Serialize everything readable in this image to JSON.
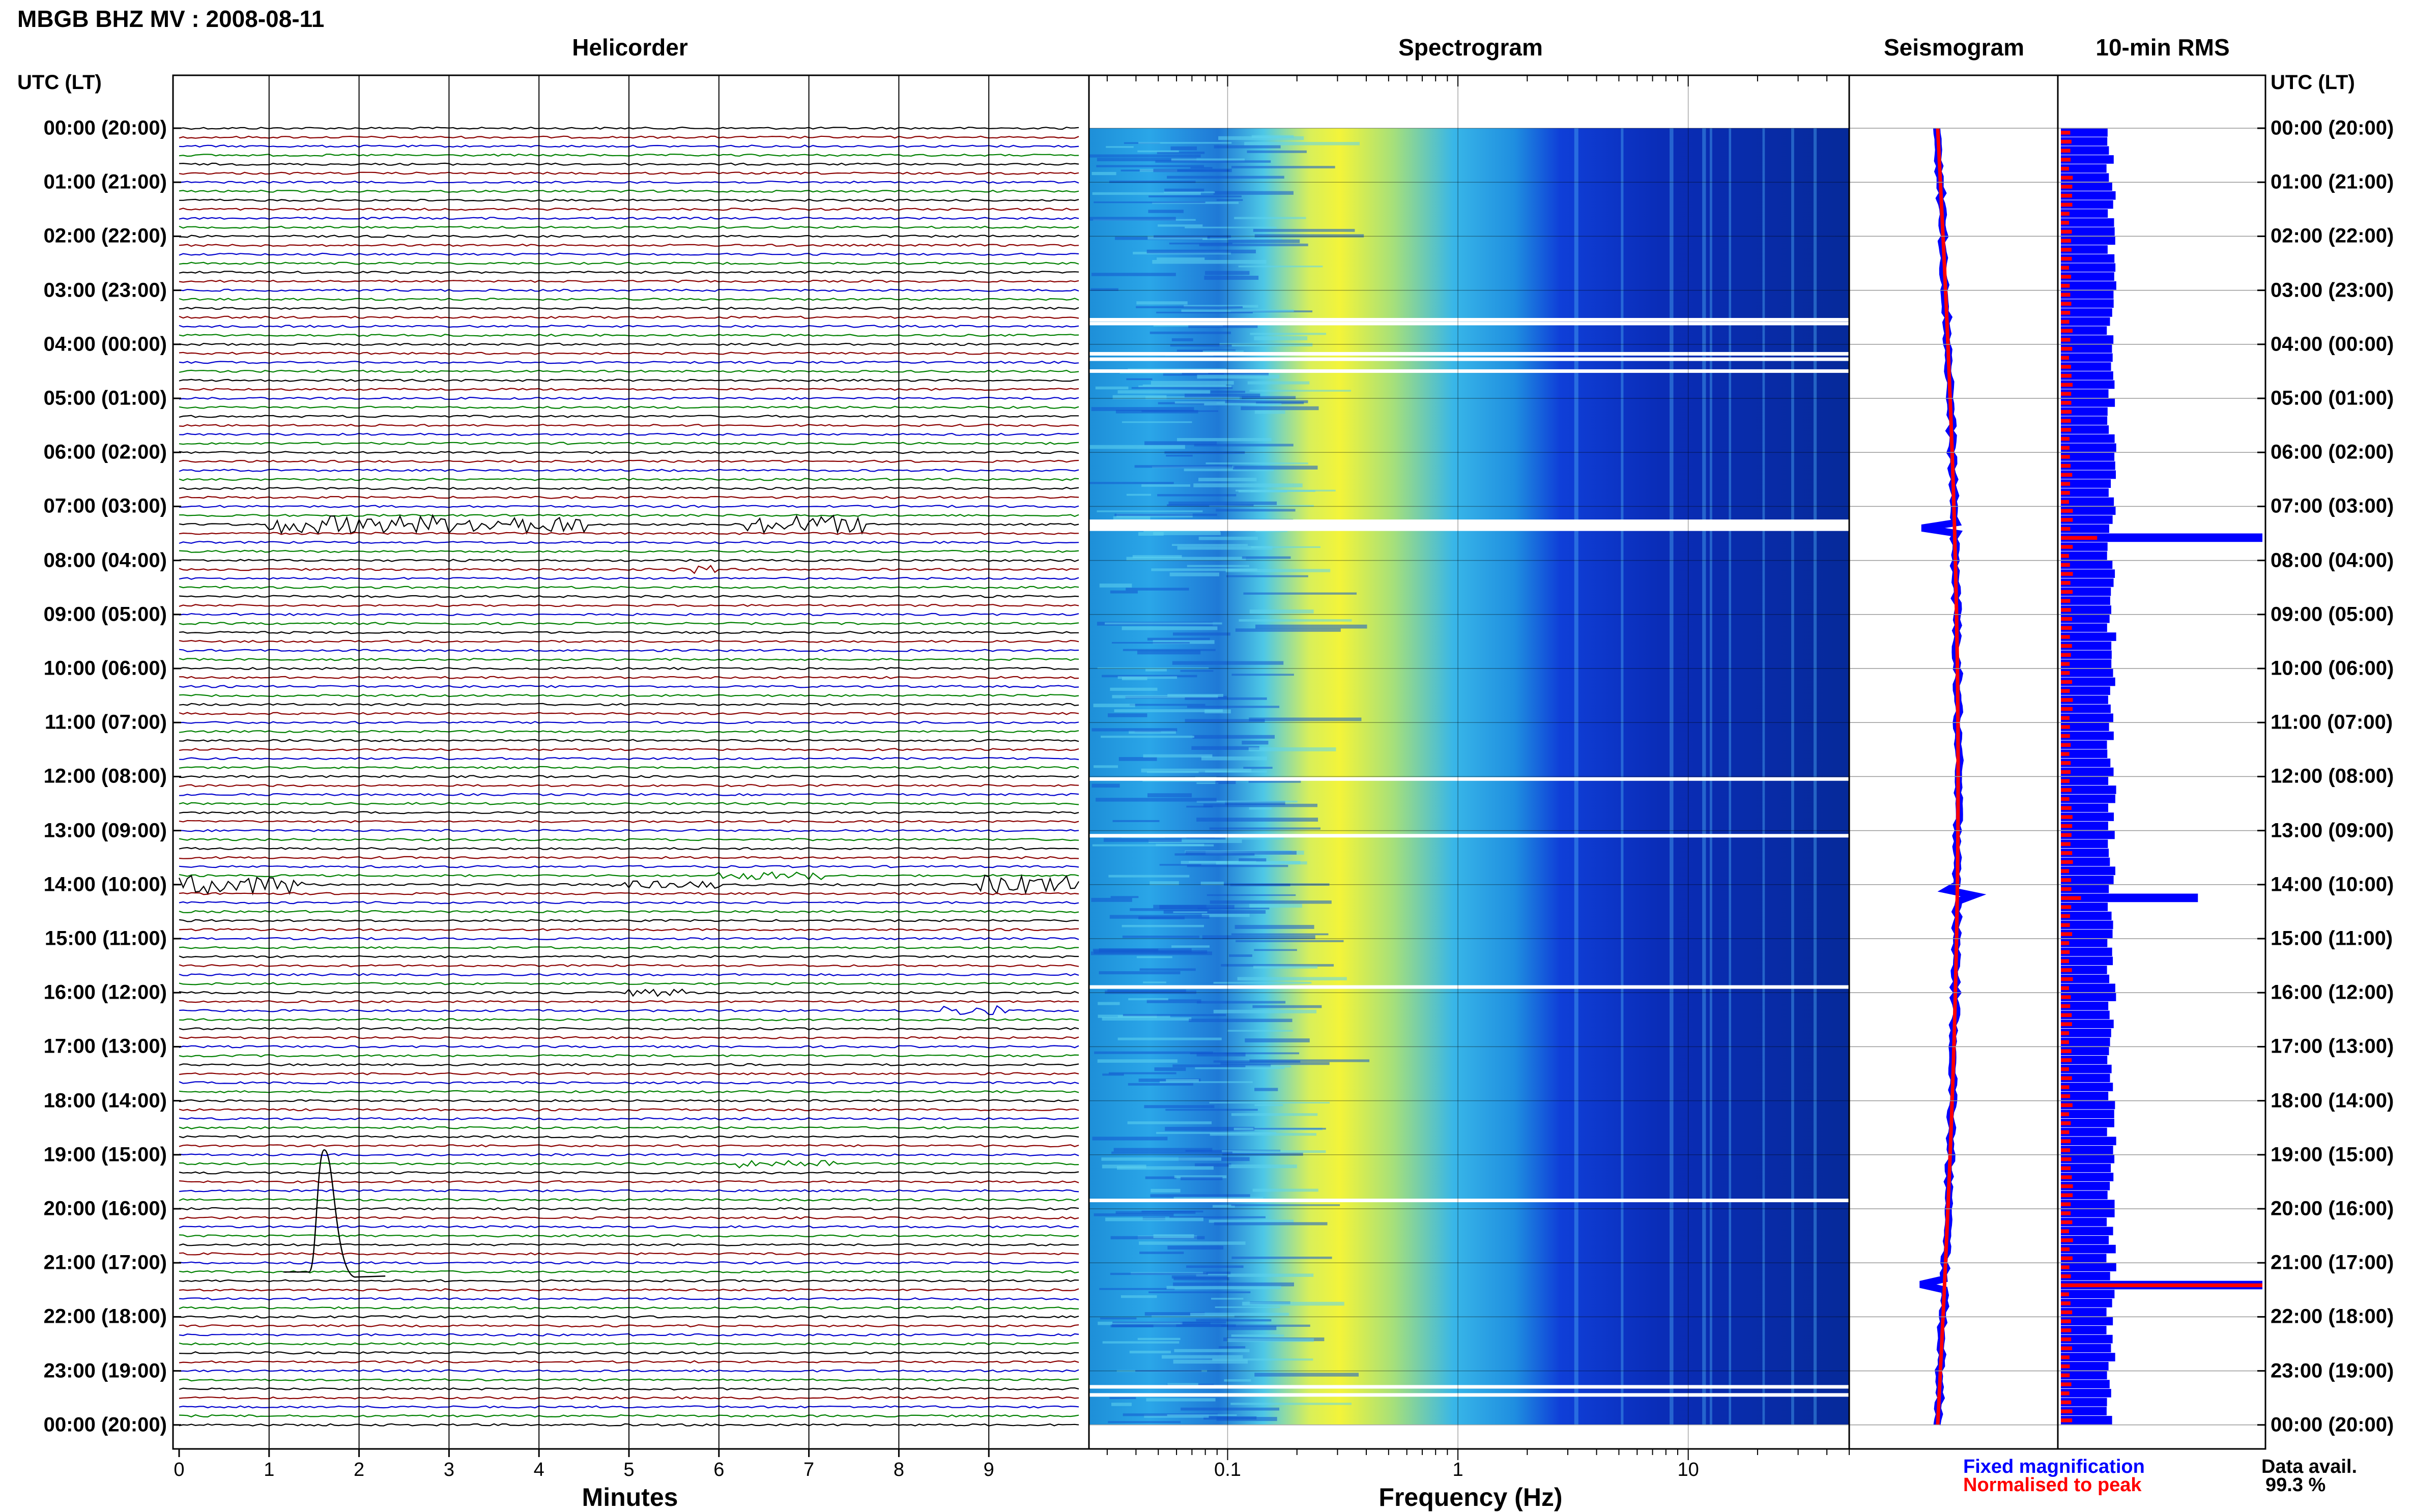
{
  "main_title": "MBGB BHZ MV : 2008-08-11",
  "panels": {
    "helicorder": "Helicorder",
    "spectrogram": "Spectrogram",
    "seismogram": "Seismogram",
    "rms": "10-min RMS"
  },
  "axis_titles": {
    "left_time": "UTC (LT)",
    "right_time": "UTC (LT)",
    "helicorder_x": "Minutes",
    "spectrogram_x": "Frequency (Hz)"
  },
  "legend": {
    "fixed": "Fixed magnification",
    "normalised": "Normalised to peak"
  },
  "data_avail": {
    "label": "Data avail.",
    "value": "99.3 %"
  },
  "colors": {
    "trace_cycle": [
      "#000000",
      "#8b0000",
      "#0000cd",
      "#008000"
    ],
    "fixed_magnification": "#0000ff",
    "normalised": "#ff0000",
    "spectrogram_low": "#00008b",
    "spectrogram_high": "#ffff00"
  },
  "chart_data": [
    {
      "type": "line",
      "panel": "helicorder",
      "xlabel": "Minutes",
      "x_ticks": [
        "0",
        "1",
        "2",
        "3",
        "4",
        "5",
        "6",
        "7",
        "8",
        "9"
      ],
      "xlim": [
        0,
        10
      ],
      "rows_per_hour": 6,
      "hours": 24,
      "events": [
        {
          "hour_decimal": 7.33,
          "minute_start": 1.0,
          "minute_end": 4.5,
          "amplitude": 3.0
        },
        {
          "hour_decimal": 7.33,
          "minute_start": 6.3,
          "minute_end": 7.6,
          "amplitude": 3.0
        },
        {
          "hour_decimal": 8.1,
          "minute_start": 5.5,
          "minute_end": 6.1,
          "amplitude": 1.4
        },
        {
          "hour_decimal": 13.83,
          "minute_start": 6.0,
          "minute_end": 7.2,
          "amplitude": 1.3
        },
        {
          "hour_decimal": 14.0,
          "minute_start": 0.0,
          "minute_end": 1.4,
          "amplitude": 3.0
        },
        {
          "hour_decimal": 14.0,
          "minute_start": 8.9,
          "minute_end": 10.0,
          "amplitude": 3.0
        },
        {
          "hour_decimal": 14.0,
          "minute_start": 4.8,
          "minute_end": 6.0,
          "amplitude": 1.2
        },
        {
          "hour_decimal": 16.0,
          "minute_start": 5.0,
          "minute_end": 5.6,
          "amplitude": 1.2
        },
        {
          "hour_decimal": 16.33,
          "minute_start": 8.5,
          "minute_end": 9.2,
          "amplitude": 1.6
        },
        {
          "hour_decimal": 19.17,
          "minute_start": 6.2,
          "minute_end": 7.3,
          "amplitude": 1.4
        }
      ]
    },
    {
      "type": "heatmap",
      "panel": "spectrogram",
      "xlabel": "Frequency (Hz)",
      "x_scale": "log",
      "xlim": [
        0.025,
        50
      ],
      "x_ticks": [
        "0.1",
        "1",
        "10"
      ],
      "tick_values": [
        0.1,
        1,
        10
      ],
      "energy_peak_hz": 0.25,
      "data_gaps_hour": [
        3.55,
        3.62,
        4.18,
        4.28,
        4.5,
        7.28,
        7.36,
        12.05,
        13.1,
        15.9,
        19.85,
        23.3,
        23.45
      ]
    },
    {
      "type": "line",
      "panel": "seismogram",
      "events_hour": [
        7.45,
        14.15,
        21.4
      ]
    },
    {
      "type": "bar",
      "panel": "rms",
      "ylabel": "UTC (LT)",
      "hours": [
        "00:00 (20:00)",
        "01:00 (21:00)",
        "02:00 (22:00)",
        "03:00 (23:00)",
        "04:00 (00:00)",
        "05:00 (01:00)",
        "06:00 (02:00)",
        "07:00 (03:00)",
        "08:00 (04:00)",
        "09:00 (05:00)",
        "10:00 (06:00)",
        "11:00 (07:00)",
        "12:00 (08:00)",
        "13:00 (09:00)",
        "14:00 (10:00)",
        "15:00 (11:00)",
        "16:00 (12:00)",
        "17:00 (13:00)",
        "18:00 (14:00)",
        "19:00 (15:00)",
        "20:00 (16:00)",
        "21:00 (17:00)",
        "22:00 (18:00)",
        "23:00 (19:00)",
        "00:00 (20:00)"
      ],
      "series": [
        {
          "name": "Fixed magnification",
          "base_level": 0.25,
          "spikes": [
            {
              "hour_decimal": 7.5,
              "value": 1.0
            },
            {
              "hour_decimal": 14.17,
              "value": 0.68
            },
            {
              "hour_decimal": 21.4,
              "value": 1.0
            }
          ]
        },
        {
          "name": "Normalised to peak",
          "base_level": 0.05,
          "spikes": [
            {
              "hour_decimal": 7.5,
              "value": 0.18
            },
            {
              "hour_decimal": 14.17,
              "value": 0.1
            },
            {
              "hour_decimal": 21.4,
              "value": 1.0
            }
          ]
        }
      ]
    }
  ]
}
